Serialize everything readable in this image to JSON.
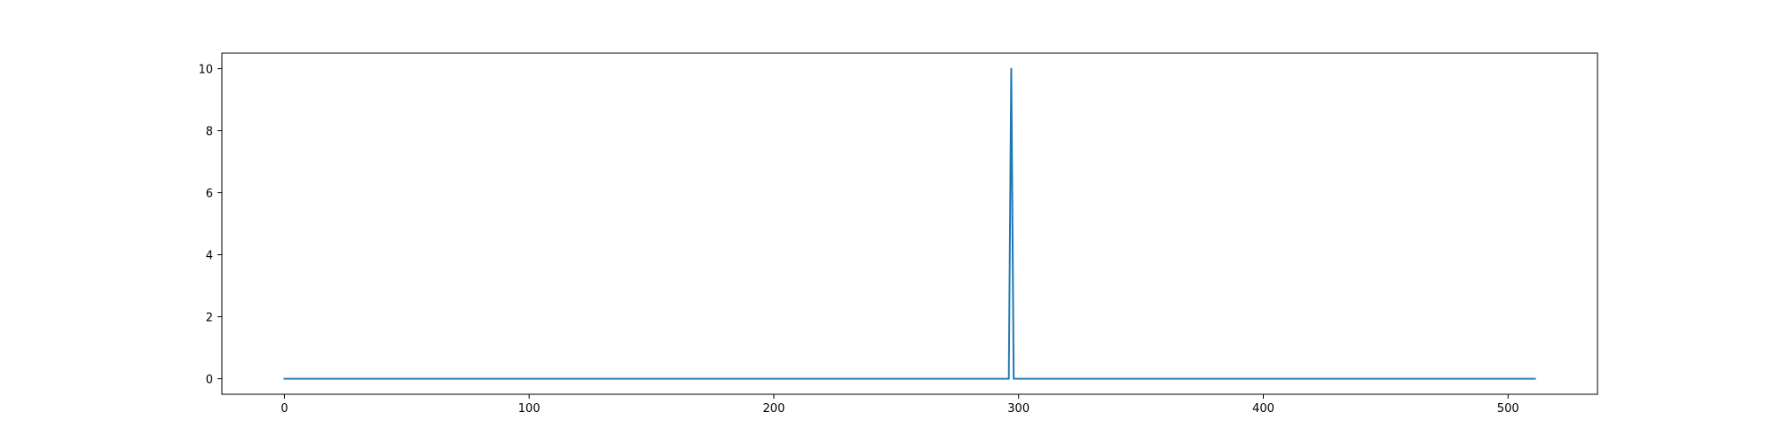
{
  "chart_data": {
    "type": "line",
    "title": "",
    "xlabel": "",
    "ylabel": "",
    "xlim": [
      -25.55,
      536.55
    ],
    "ylim": [
      -0.5,
      10.5
    ],
    "xticks": [
      0,
      100,
      200,
      300,
      400,
      500
    ],
    "yticks": [
      0,
      2,
      4,
      6,
      8,
      10
    ],
    "grid": false,
    "legend": "none",
    "series": [
      {
        "color": "#1f77b4",
        "x": [
          0,
          296,
          297,
          298,
          511
        ],
        "y": [
          0,
          0,
          10,
          0,
          0
        ]
      }
    ]
  }
}
